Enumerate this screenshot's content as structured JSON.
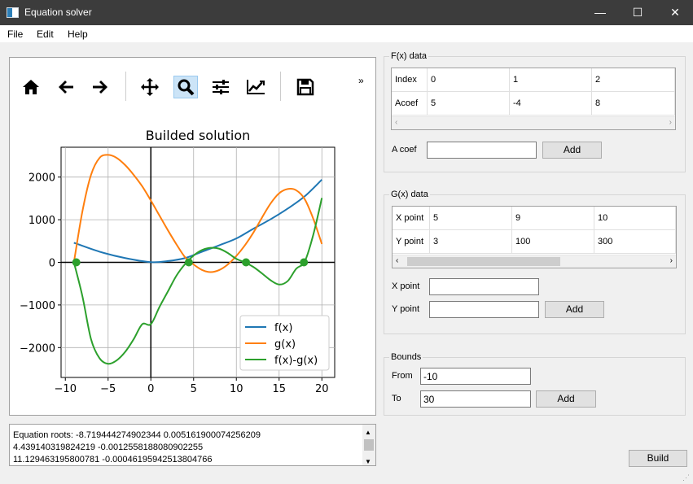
{
  "window": {
    "title": "Equation solver",
    "minimize": "—",
    "maximize": "☐",
    "close": "✕"
  },
  "menu": [
    "File",
    "Edit",
    "Help"
  ],
  "toolbar": {
    "overflow": "»",
    "active": "zoom-icon"
  },
  "chart_data": {
    "type": "line",
    "title": "Builded solution",
    "xlim": [
      -10.5,
      21.5
    ],
    "ylim": [
      -2700,
      2700
    ],
    "xticks": [
      -10,
      -5,
      0,
      5,
      10,
      15,
      20
    ],
    "yticks": [
      -2000,
      -1000,
      0,
      1000,
      2000
    ],
    "xtick_labels": [
      "−10",
      "−5",
      "0",
      "5",
      "10",
      "15",
      "20"
    ],
    "ytick_labels": [
      "−2000",
      "−1000",
      "0",
      "1000",
      "2000"
    ],
    "grid": true,
    "legend_position": "lower-right",
    "series": [
      {
        "name": "f(x)",
        "color": "#1f77b4",
        "x": [
          -9,
          -6,
          -3,
          0,
          2,
          4,
          6,
          8,
          10,
          12,
          14,
          16,
          18,
          20
        ],
        "y": [
          460,
          250,
          100,
          5,
          30,
          100,
          250,
          400,
          560,
          790,
          1010,
          1260,
          1550,
          1940
        ]
      },
      {
        "name": "g(x)",
        "color": "#ff7f0e",
        "x": [
          -9,
          -8,
          -7,
          -6,
          -5,
          -4,
          -3,
          -2,
          -1,
          0,
          1,
          2,
          3,
          4,
          5,
          6,
          7,
          8,
          9,
          10,
          11,
          12,
          13,
          14,
          15,
          16,
          17,
          18,
          19,
          20
        ],
        "y": [
          0,
          1200,
          2050,
          2450,
          2520,
          2450,
          2280,
          2050,
          1780,
          1450,
          1100,
          750,
          420,
          120,
          -50,
          -180,
          -230,
          -180,
          -50,
          150,
          400,
          700,
          1050,
          1380,
          1620,
          1720,
          1690,
          1480,
          1020,
          430
        ]
      },
      {
        "name": "f(x)-g(x)",
        "color": "#2ca02c",
        "x": [
          -9,
          -8,
          -7,
          -6,
          -5,
          -4,
          -3,
          -2,
          -1,
          0,
          1,
          2,
          3,
          4,
          5,
          6,
          7,
          8,
          9,
          10,
          11,
          12,
          13,
          14,
          15,
          16,
          17,
          18,
          19,
          20
        ],
        "y": [
          0,
          -800,
          -1800,
          -2250,
          -2380,
          -2300,
          -2100,
          -1800,
          -1450,
          -1450,
          -1050,
          -680,
          -310,
          -40,
          160,
          290,
          340,
          320,
          220,
          80,
          0,
          -110,
          -260,
          -420,
          -520,
          -440,
          -150,
          20,
          650,
          1510
        ]
      }
    ],
    "roots": {
      "color": "#2ca02c",
      "x": [
        -8.72,
        4.44,
        11.13,
        17.9
      ],
      "y": [
        0,
        0,
        0,
        0
      ]
    }
  },
  "fx_group": {
    "title": "F(x) data",
    "rows": [
      {
        "header": "Index",
        "cells": [
          "0",
          "1",
          "2"
        ]
      },
      {
        "header": "Acoef",
        "cells": [
          "5",
          "-4",
          "8"
        ]
      }
    ],
    "input_label": "A coef",
    "input_value": "",
    "add_label": "Add"
  },
  "gx_group": {
    "title": "G(x) data",
    "rows": [
      {
        "header": "X point",
        "cells": [
          "5",
          "9",
          "10"
        ]
      },
      {
        "header": "Y point",
        "cells": [
          "3",
          "100",
          "300"
        ]
      }
    ],
    "x_label": "X point",
    "y_label": "Y point",
    "x_value": "",
    "y_value": "",
    "add_label": "Add"
  },
  "bounds": {
    "title": "Bounds",
    "from_label": "From",
    "from_value": "-10",
    "to_label": "To",
    "to_value": "30",
    "add_label": "Add"
  },
  "console": {
    "lines": [
      "Equation roots: -8.719444274902344 0.005161900074256209",
      "4.439140319824219 -0.0012558188080902255",
      "11.129463195800781 -0.00046195942513804766"
    ]
  },
  "build_label": "Build"
}
